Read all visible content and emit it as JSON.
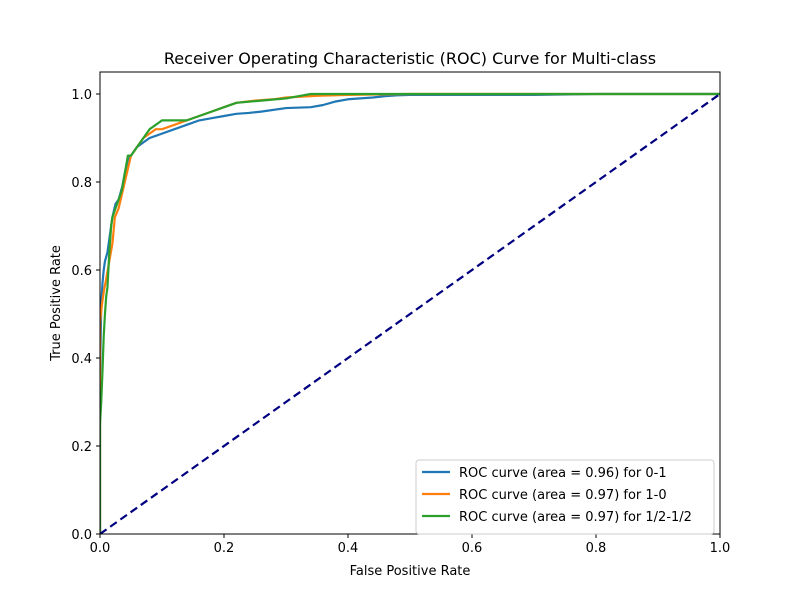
{
  "chart_data": {
    "type": "line",
    "title": "Receiver Operating Characteristic (ROC) Curve for Multi-class",
    "xlabel": "False Positive Rate",
    "ylabel": "True Positive Rate",
    "xlim": [
      0.0,
      1.0
    ],
    "ylim": [
      0.0,
      1.05
    ],
    "xticks": [
      "0.0",
      "0.2",
      "0.4",
      "0.6",
      "0.8",
      "1.0"
    ],
    "yticks": [
      "0.0",
      "0.2",
      "0.4",
      "0.6",
      "0.8",
      "1.0"
    ],
    "grid": false,
    "legend_position": "lower-right",
    "series": [
      {
        "name": "ROC curve (area = 0.96) for 0-1",
        "color": "#1f77b4",
        "x": [
          0,
          0,
          0.002,
          0.004,
          0.006,
          0.008,
          0.01,
          0.012,
          0.016,
          0.02,
          0.025,
          0.03,
          0.036,
          0.04,
          0.045,
          0.05,
          0.055,
          0.06,
          0.07,
          0.08,
          0.09,
          0.1,
          0.12,
          0.14,
          0.16,
          0.18,
          0.2,
          0.22,
          0.24,
          0.26,
          0.3,
          0.34,
          0.36,
          0.38,
          0.4,
          0.42,
          0.44,
          0.46,
          0.48,
          0.5,
          0.6,
          0.7,
          0.8,
          0.9,
          1.0
        ],
        "y": [
          0,
          0.36,
          0.52,
          0.57,
          0.6,
          0.62,
          0.63,
          0.64,
          0.68,
          0.72,
          0.75,
          0.76,
          0.79,
          0.82,
          0.85,
          0.86,
          0.87,
          0.88,
          0.89,
          0.9,
          0.905,
          0.91,
          0.92,
          0.93,
          0.94,
          0.945,
          0.95,
          0.955,
          0.957,
          0.96,
          0.968,
          0.97,
          0.975,
          0.983,
          0.988,
          0.99,
          0.992,
          0.995,
          0.997,
          0.998,
          0.998,
          0.998,
          1.0,
          1.0,
          1.0
        ]
      },
      {
        "name": "ROC curve (area = 0.97) for 1-0",
        "color": "#ff7f0e",
        "x": [
          0,
          0,
          0.003,
          0.006,
          0.01,
          0.015,
          0.02,
          0.024,
          0.03,
          0.035,
          0.04,
          0.045,
          0.05,
          0.06,
          0.07,
          0.08,
          0.09,
          0.1,
          0.12,
          0.14,
          0.16,
          0.18,
          0.2,
          0.22,
          0.25,
          0.28,
          0.3,
          0.35,
          0.4,
          0.5,
          0.6,
          0.8,
          1.0
        ],
        "y": [
          0,
          0.48,
          0.52,
          0.55,
          0.58,
          0.62,
          0.66,
          0.72,
          0.74,
          0.77,
          0.8,
          0.83,
          0.86,
          0.88,
          0.9,
          0.91,
          0.92,
          0.92,
          0.93,
          0.94,
          0.95,
          0.96,
          0.97,
          0.98,
          0.985,
          0.988,
          0.992,
          0.996,
          0.998,
          1.0,
          1.0,
          1.0,
          1.0
        ]
      },
      {
        "name": "ROC curve (area = 0.97) for 1/2-1/2",
        "color": "#2ca02c",
        "x": [
          0,
          0,
          0.002,
          0.004,
          0.006,
          0.008,
          0.01,
          0.012,
          0.015,
          0.018,
          0.02,
          0.025,
          0.03,
          0.035,
          0.04,
          0.045,
          0.05,
          0.06,
          0.07,
          0.08,
          0.09,
          0.1,
          0.12,
          0.14,
          0.16,
          0.18,
          0.2,
          0.22,
          0.26,
          0.3,
          0.34,
          0.4,
          0.5,
          0.6,
          0.7,
          0.8,
          1.0
        ],
        "y": [
          0,
          0.25,
          0.3,
          0.37,
          0.45,
          0.5,
          0.54,
          0.56,
          0.64,
          0.7,
          0.72,
          0.74,
          0.76,
          0.78,
          0.82,
          0.86,
          0.86,
          0.88,
          0.9,
          0.92,
          0.93,
          0.94,
          0.94,
          0.94,
          0.95,
          0.96,
          0.97,
          0.98,
          0.985,
          0.99,
          1.0,
          1.0,
          1.0,
          1.0,
          1.0,
          1.0,
          1.0
        ]
      },
      {
        "name": "",
        "color": "#000080",
        "linestyle": "dashed",
        "x": [
          0,
          1
        ],
        "y": [
          0,
          1
        ]
      }
    ]
  }
}
